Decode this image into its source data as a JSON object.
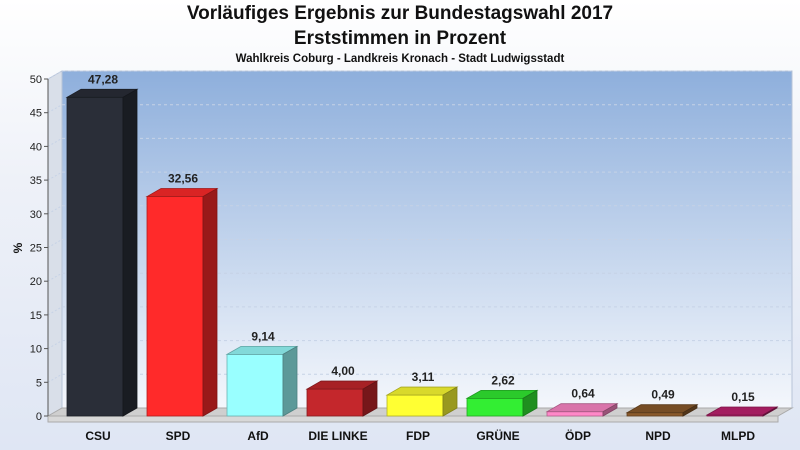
{
  "chart_data": {
    "type": "bar",
    "title": "Vorläufiges Ergebnis zur Bundestagswahl 2017",
    "subtitle": "Erststimmen in Prozent",
    "subtitle2": "Wahlkreis Coburg - Landkreis Kronach - Stadt Ludwigsstadt",
    "ylabel": "%",
    "xlabel": "",
    "ylim": [
      0,
      50
    ],
    "yticks": [
      0,
      5,
      10,
      15,
      20,
      25,
      30,
      35,
      40,
      45,
      50
    ],
    "grid": true,
    "categories": [
      "CSU",
      "SPD",
      "AfD",
      "DIE LINKE",
      "FDP",
      "GRÜNE",
      "ÖDP",
      "NPD",
      "MLPD"
    ],
    "values": [
      47.28,
      32.56,
      9.14,
      4.0,
      3.11,
      2.62,
      0.64,
      0.49,
      0.15
    ],
    "value_labels": [
      "47,28",
      "32,56",
      "9,14",
      "4,00",
      "3,11",
      "2,62",
      "0,64",
      "0,49",
      "0,15"
    ],
    "colors": [
      "#2a2e38",
      "#ff2a2a",
      "#99ffff",
      "#c4272c",
      "#ffff33",
      "#33ee33",
      "#ff88c8",
      "#8b5a2b",
      "#c02270"
    ]
  }
}
